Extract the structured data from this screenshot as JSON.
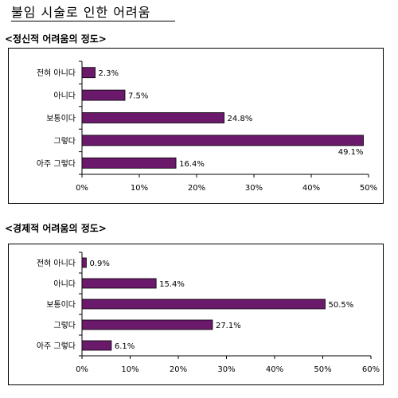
{
  "page": {
    "title": "불임 시술로 인한 어려움"
  },
  "colors": {
    "bar": "#6b1a6b",
    "axis": "#000000"
  },
  "chart_data": [
    {
      "type": "bar",
      "orientation": "horizontal",
      "title": "<정신적 어려움의 정도>",
      "categories": [
        "전혀 아니다",
        "아니다",
        "보통이다",
        "그렇다",
        "아주 그렇다"
      ],
      "values": [
        2.3,
        7.5,
        24.8,
        49.1,
        16.4
      ],
      "value_labels": [
        "2.3%",
        "7.5%",
        "24.8%",
        "49.1%",
        "16.4%"
      ],
      "xlim": [
        0,
        50
      ],
      "x_ticks": [
        "0%",
        "10%",
        "20%",
        "30%",
        "40%",
        "50%"
      ],
      "grid": false
    },
    {
      "type": "bar",
      "orientation": "horizontal",
      "title": "<경제적 어려움의 정도>",
      "categories": [
        "전혀 아니다",
        "아니다",
        "보통이다",
        "그렇다",
        "아주 그렇다"
      ],
      "values": [
        0.9,
        15.4,
        50.5,
        27.1,
        6.1
      ],
      "value_labels": [
        "0.9%",
        "15.4%",
        "50.5%",
        "27.1%",
        "6.1%"
      ],
      "xlim": [
        0,
        60
      ],
      "x_ticks": [
        "0%",
        "10%",
        "20%",
        "30%",
        "40%",
        "50%",
        "60%"
      ],
      "grid": false
    }
  ]
}
